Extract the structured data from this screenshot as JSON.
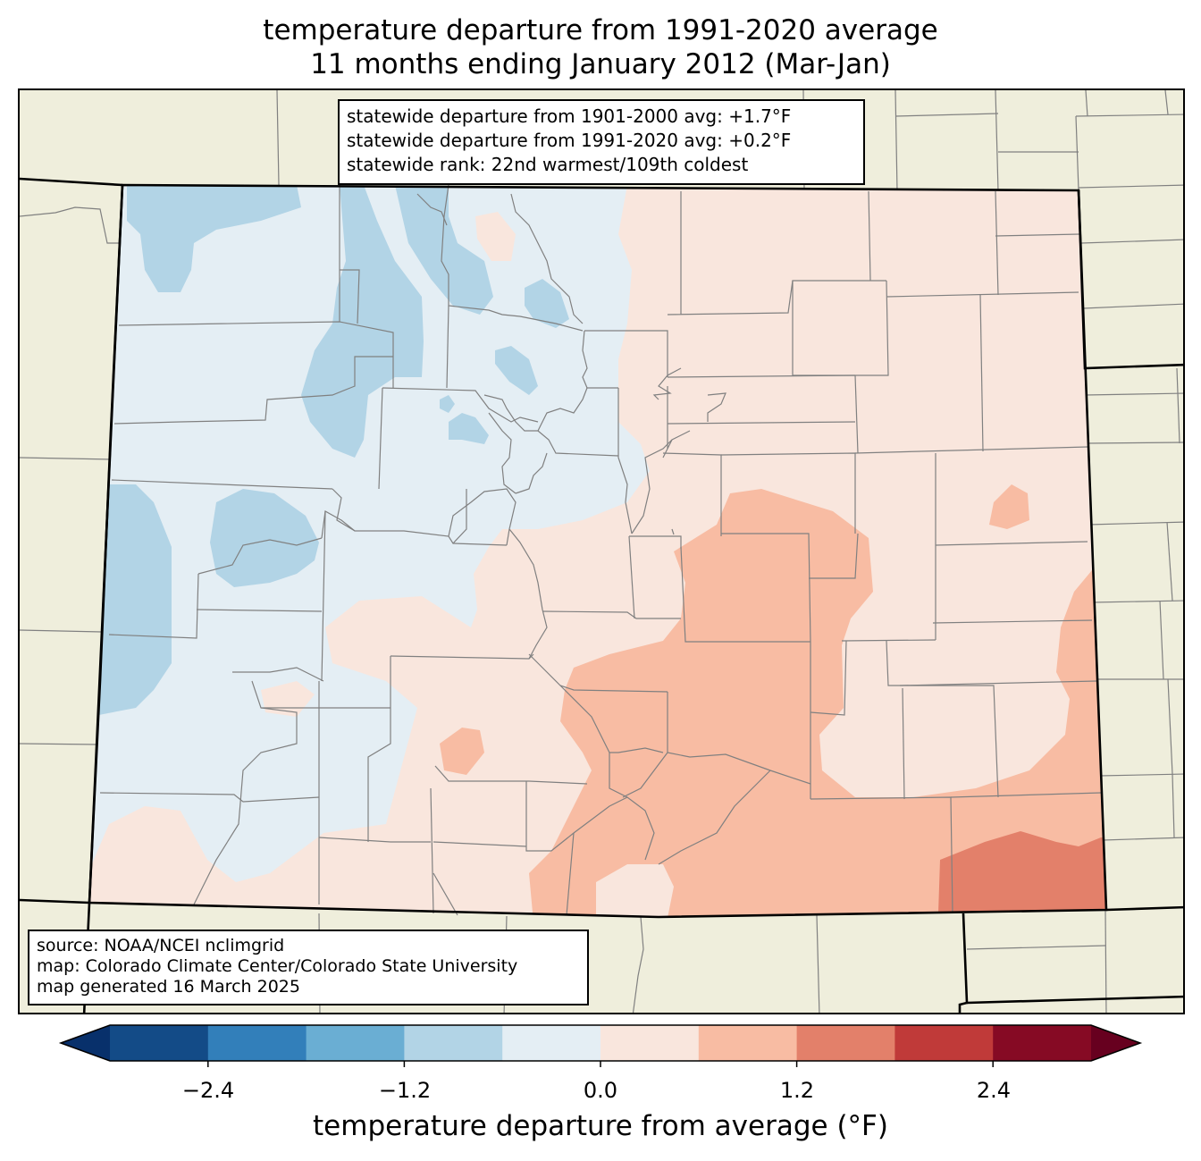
{
  "title": {
    "line1": "temperature departure from 1991-2020 average",
    "line2": "11 months ending January 2012 (Mar-Jan)"
  },
  "stats": {
    "line1": "statewide departure from 1901-2000 avg: +1.7°F",
    "line2": "statewide departure from 1991-2020 avg: +0.2°F",
    "line3": "statewide rank: 22nd warmest/109th coldest"
  },
  "source": {
    "line1": "source: NOAA/NCEI nclimgrid",
    "line2": "map: Colorado Climate Center/Colorado State University",
    "line3": "map generated 16 March 2025"
  },
  "colorbar": {
    "label": "temperature departure from average (°F)",
    "ticks": [
      "−2.4",
      "−1.2",
      "0.0",
      "1.2",
      "2.4"
    ],
    "tick_values": [
      -2.4,
      -1.2,
      0.0,
      1.2,
      2.4
    ],
    "bins": [
      -3.0,
      -2.4,
      -1.8,
      -1.2,
      -0.6,
      0.0,
      0.6,
      1.2,
      1.8,
      2.4,
      3.0
    ],
    "colors": [
      "#08306b",
      "#134b87",
      "#327fba",
      "#6aaed3",
      "#b2d4e6",
      "#e4eef4",
      "#f9e6dd",
      "#f8bca3",
      "#e3806a",
      "#c03a39",
      "#860a24",
      "#67001f"
    ],
    "units": "°F"
  },
  "map_colors": {
    "land_outside": "#efeedc",
    "county_lines": "#808080",
    "state_lines": "#000000"
  }
}
